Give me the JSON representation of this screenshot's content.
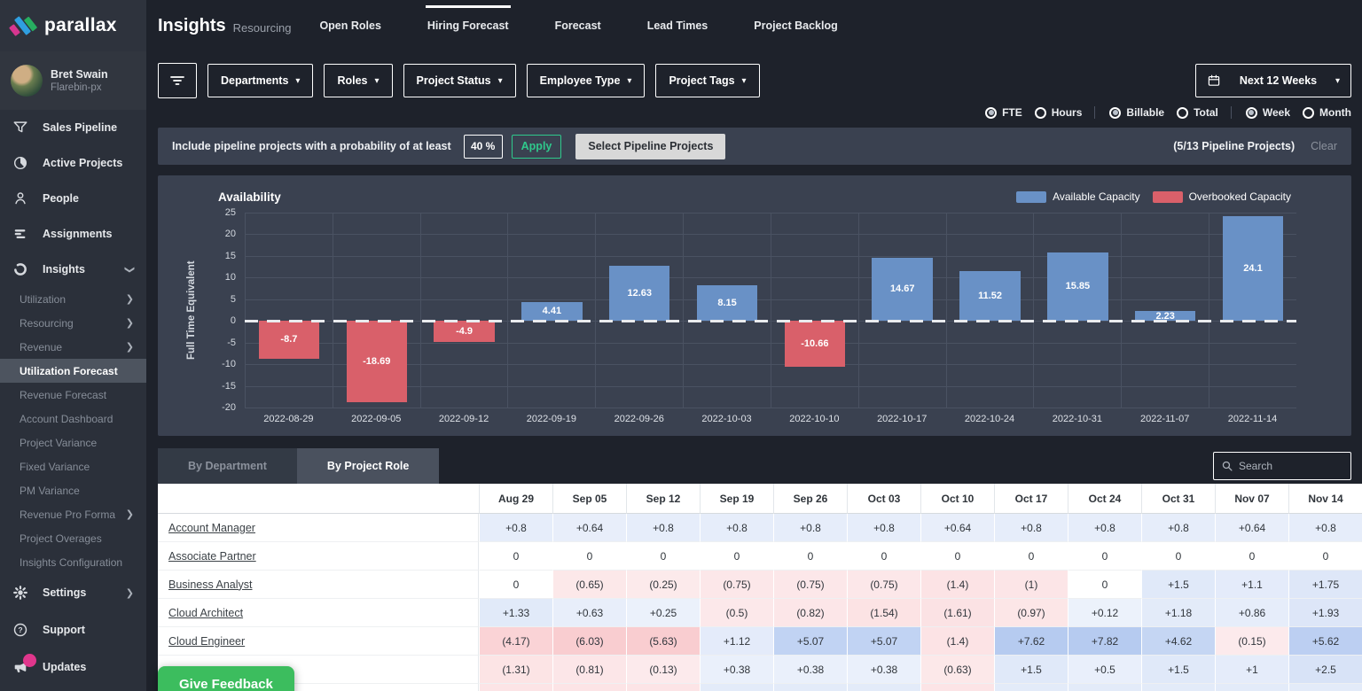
{
  "brand": {
    "logo_text": "parallax"
  },
  "user": {
    "name": "Bret Swain",
    "org": "Flarebin-px"
  },
  "sidebar": {
    "items": [
      {
        "label": "Sales Pipeline",
        "icon": "funnel-icon"
      },
      {
        "label": "Active Projects",
        "icon": "pie-icon"
      },
      {
        "label": "People",
        "icon": "person-icon"
      },
      {
        "label": "Assignments",
        "icon": "bars-icon"
      },
      {
        "label": "Insights",
        "icon": "insights-icon",
        "expanded": true
      }
    ],
    "insights_subitems": [
      {
        "label": "Utilization",
        "chevron": true
      },
      {
        "label": "Resourcing",
        "chevron": true
      },
      {
        "label": "Revenue",
        "chevron": true
      },
      {
        "label": "Utilization Forecast",
        "active": true
      },
      {
        "label": "Revenue Forecast"
      },
      {
        "label": "Account Dashboard"
      },
      {
        "label": "Project Variance"
      },
      {
        "label": "Fixed Variance"
      },
      {
        "label": "PM Variance"
      },
      {
        "label": "Revenue Pro Forma",
        "chevron": true
      },
      {
        "label": "Project Overages"
      },
      {
        "label": "Insights Configuration"
      }
    ],
    "bottom_items": [
      {
        "label": "Settings",
        "icon": "gear-icon",
        "chevron": true
      },
      {
        "label": "Support",
        "icon": "help-icon"
      },
      {
        "label": "Updates",
        "icon": "megaphone-icon",
        "badge": true
      }
    ]
  },
  "header": {
    "title": "Insights",
    "subtitle": "Resourcing",
    "tabs": [
      {
        "label": "Open Roles"
      },
      {
        "label": "Hiring Forecast",
        "active": true
      },
      {
        "label": "Forecast"
      },
      {
        "label": "Lead Times"
      },
      {
        "label": "Project Backlog"
      }
    ]
  },
  "filters": {
    "dropdowns": [
      "Departments",
      "Roles",
      "Project Status",
      "Employee Type",
      "Project Tags"
    ],
    "date_range": "Next 12 Weeks",
    "toggles": [
      {
        "options": [
          "FTE",
          "Hours"
        ],
        "selected": "FTE"
      },
      {
        "options": [
          "Billable",
          "Total"
        ],
        "selected": "Billable"
      },
      {
        "options": [
          "Week",
          "Month"
        ],
        "selected": "Week"
      }
    ]
  },
  "pipeline_bar": {
    "label": "Include pipeline projects with a probability of at least",
    "probability": "40 %",
    "apply_label": "Apply",
    "select_label": "Select Pipeline Projects",
    "summary": "(5/13 Pipeline Projects)",
    "clear_label": "Clear"
  },
  "chart_data": {
    "type": "bar",
    "title": "Availability",
    "ylabel": "Full Time Equivalent",
    "ylim": [
      -20,
      25
    ],
    "yticks": [
      25,
      20,
      15,
      10,
      5,
      0,
      -5,
      -10,
      -15,
      -20
    ],
    "grid": true,
    "legend_position": "top-right",
    "categories": [
      "2022-08-29",
      "2022-09-05",
      "2022-09-12",
      "2022-09-19",
      "2022-09-26",
      "2022-10-03",
      "2022-10-10",
      "2022-10-17",
      "2022-10-24",
      "2022-10-31",
      "2022-11-07",
      "2022-11-14"
    ],
    "values": [
      -8.7,
      -18.69,
      -4.9,
      4.41,
      12.63,
      8.15,
      -10.66,
      14.67,
      11.52,
      15.85,
      2.23,
      24.1
    ],
    "positive_color": "#6991c6",
    "negative_color": "#d9606a",
    "legend": [
      {
        "label": "Available Capacity",
        "color": "#6991c6"
      },
      {
        "label": "Overbooked Capacity",
        "color": "#d9606a"
      }
    ]
  },
  "table": {
    "tabs": [
      {
        "label": "By Department"
      },
      {
        "label": "By Project Role",
        "active": true
      }
    ],
    "search_placeholder": "Search",
    "columns": [
      "Aug 29",
      "Sep 05",
      "Sep 12",
      "Sep 19",
      "Sep 26",
      "Oct 03",
      "Oct 10",
      "Oct 17",
      "Oct 24",
      "Oct 31",
      "Nov 07",
      "Nov 14"
    ],
    "rows": [
      {
        "label": "Account Manager",
        "values": [
          "+0.8",
          "+0.64",
          "+0.8",
          "+0.8",
          "+0.8",
          "+0.8",
          "+0.64",
          "+0.8",
          "+0.8",
          "+0.8",
          "+0.64",
          "+0.8"
        ]
      },
      {
        "label": "Associate Partner",
        "values": [
          "0",
          "0",
          "0",
          "0",
          "0",
          "0",
          "0",
          "0",
          "0",
          "0",
          "0",
          "0"
        ]
      },
      {
        "label": "Business Analyst",
        "values": [
          "0",
          "(0.65)",
          "(0.25)",
          "(0.75)",
          "(0.75)",
          "(0.75)",
          "(1.4)",
          "(1)",
          "0",
          "+1.5",
          "+1.1",
          "+1.75"
        ]
      },
      {
        "label": "Cloud Architect",
        "values": [
          "+1.33",
          "+0.63",
          "+0.25",
          "(0.5)",
          "(0.82)",
          "(1.54)",
          "(1.61)",
          "(0.97)",
          "+0.12",
          "+1.18",
          "+0.86",
          "+1.93"
        ]
      },
      {
        "label": "Cloud Engineer",
        "values": [
          "(4.17)",
          "(6.03)",
          "(5.63)",
          "+1.12",
          "+5.07",
          "+5.07",
          "(1.4)",
          "+7.62",
          "+7.82",
          "+4.62",
          "(0.15)",
          "+5.62"
        ]
      },
      {
        "label": "",
        "values": [
          "(1.31)",
          "(0.81)",
          "(0.13)",
          "+0.38",
          "+0.38",
          "+0.38",
          "(0.63)",
          "+1.5",
          "+0.5",
          "+1.5",
          "+1",
          "+2.5"
        ]
      }
    ],
    "partial_row_tints": [
      "neg",
      "neg",
      "neg",
      "pos",
      "pos",
      "pos",
      "neg",
      "pos",
      "pos",
      "pos",
      "pos",
      "pos"
    ]
  },
  "feedback_button": "Give Feedback"
}
